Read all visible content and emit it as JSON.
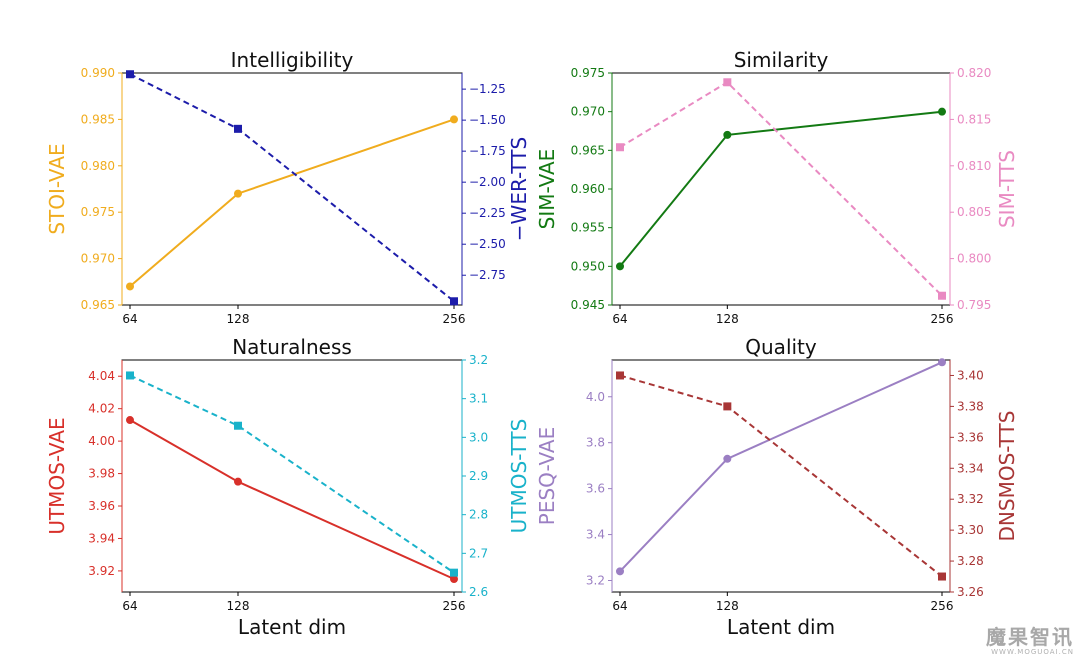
{
  "chart_data": [
    {
      "type": "line",
      "title": "Intelligibility",
      "xlabel": "",
      "x": [
        64,
        128,
        256
      ],
      "x_ticks": [
        "64",
        "128",
        "256"
      ],
      "left_axis": {
        "label": "STOI-VAE",
        "color": "#f0ac1e",
        "ylim": [
          0.965,
          0.99
        ],
        "ticks": [
          "0.965",
          "0.970",
          "0.975",
          "0.980",
          "0.985",
          "0.990"
        ]
      },
      "right_axis": {
        "label": "−WER-TTS",
        "color": "#1c1caa",
        "ylim": [
          -2.99,
          -1.12
        ],
        "ticks": [
          "−1.25",
          "−1.50",
          "−1.75",
          "−2.00",
          "−2.25",
          "−2.50",
          "−2.75"
        ]
      },
      "series": [
        {
          "name": "STOI-VAE",
          "axis": "left",
          "style": "solid",
          "marker": "circle",
          "color": "#f0ac1e",
          "values": [
            0.967,
            0.977,
            0.985
          ]
        },
        {
          "name": "−WER-TTS",
          "axis": "right",
          "style": "dashed",
          "marker": "square",
          "color": "#1c1caa",
          "values": [
            -1.13,
            -1.57,
            -2.96
          ]
        }
      ]
    },
    {
      "type": "line",
      "title": "Similarity",
      "xlabel": "",
      "x": [
        64,
        128,
        256
      ],
      "x_ticks": [
        "64",
        "128",
        "256"
      ],
      "left_axis": {
        "label": "SIM-VAE",
        "color": "#137a13",
        "ylim": [
          0.945,
          0.975
        ],
        "ticks": [
          "0.945",
          "0.950",
          "0.955",
          "0.960",
          "0.965",
          "0.970",
          "0.975"
        ]
      },
      "right_axis": {
        "label": "SIM-TTS",
        "color": "#e98ac2",
        "ylim": [
          0.795,
          0.82
        ],
        "ticks": [
          "0.795",
          "0.800",
          "0.805",
          "0.810",
          "0.815",
          "0.820"
        ]
      },
      "series": [
        {
          "name": "SIM-VAE",
          "axis": "left",
          "style": "solid",
          "marker": "circle",
          "color": "#137a13",
          "values": [
            0.95,
            0.967,
            0.97
          ]
        },
        {
          "name": "SIM-TTS",
          "axis": "right",
          "style": "dashed",
          "marker": "square",
          "color": "#e98ac2",
          "values": [
            0.812,
            0.819,
            0.796
          ]
        }
      ]
    },
    {
      "type": "line",
      "title": "Naturalness",
      "xlabel": "Latent dim",
      "x": [
        64,
        128,
        256
      ],
      "x_ticks": [
        "64",
        "128",
        "256"
      ],
      "left_axis": {
        "label": "UTMOS-VAE",
        "color": "#d8302a",
        "ylim": [
          3.907,
          4.05
        ],
        "ticks": [
          "3.92",
          "3.94",
          "3.96",
          "3.98",
          "4.00",
          "4.02",
          "4.04"
        ]
      },
      "right_axis": {
        "label": "UTMOS-TTS",
        "color": "#19b2ca",
        "ylim": [
          2.6,
          3.2
        ],
        "ticks": [
          "2.6",
          "2.7",
          "2.8",
          "2.9",
          "3.0",
          "3.1",
          "3.2"
        ]
      },
      "series": [
        {
          "name": "UTMOS-VAE",
          "axis": "left",
          "style": "solid",
          "marker": "circle",
          "color": "#d8302a",
          "values": [
            4.013,
            3.975,
            3.915
          ]
        },
        {
          "name": "UTMOS-TTS",
          "axis": "right",
          "style": "dashed",
          "marker": "square",
          "color": "#19b2ca",
          "values": [
            3.16,
            3.03,
            2.65
          ]
        }
      ]
    },
    {
      "type": "line",
      "title": "Quality",
      "xlabel": "Latent dim",
      "x": [
        64,
        128,
        256
      ],
      "x_ticks": [
        "64",
        "128",
        "256"
      ],
      "left_axis": {
        "label": "PESQ-VAE",
        "color": "#9b7fc3",
        "ylim": [
          3.15,
          4.16
        ],
        "ticks": [
          "3.2",
          "3.4",
          "3.6",
          "3.8",
          "4.0"
        ]
      },
      "right_axis": {
        "label": "DNSMOS-TTS",
        "color": "#a83636",
        "ylim": [
          3.26,
          3.41
        ],
        "ticks": [
          "3.26",
          "3.28",
          "3.30",
          "3.32",
          "3.34",
          "3.36",
          "3.38",
          "3.40"
        ]
      },
      "series": [
        {
          "name": "PESQ-VAE",
          "axis": "left",
          "style": "solid",
          "marker": "circle",
          "color": "#9b7fc3",
          "values": [
            3.24,
            3.73,
            4.15
          ]
        },
        {
          "name": "DNSMOS-TTS",
          "axis": "right",
          "style": "dashed",
          "marker": "square",
          "color": "#a83636",
          "values": [
            3.4,
            3.38,
            3.27
          ]
        }
      ]
    }
  ],
  "watermark": {
    "main": "魔果智讯",
    "sub": "WWW.MOGUOAI.CN",
    "color": "#a8a8a8"
  }
}
